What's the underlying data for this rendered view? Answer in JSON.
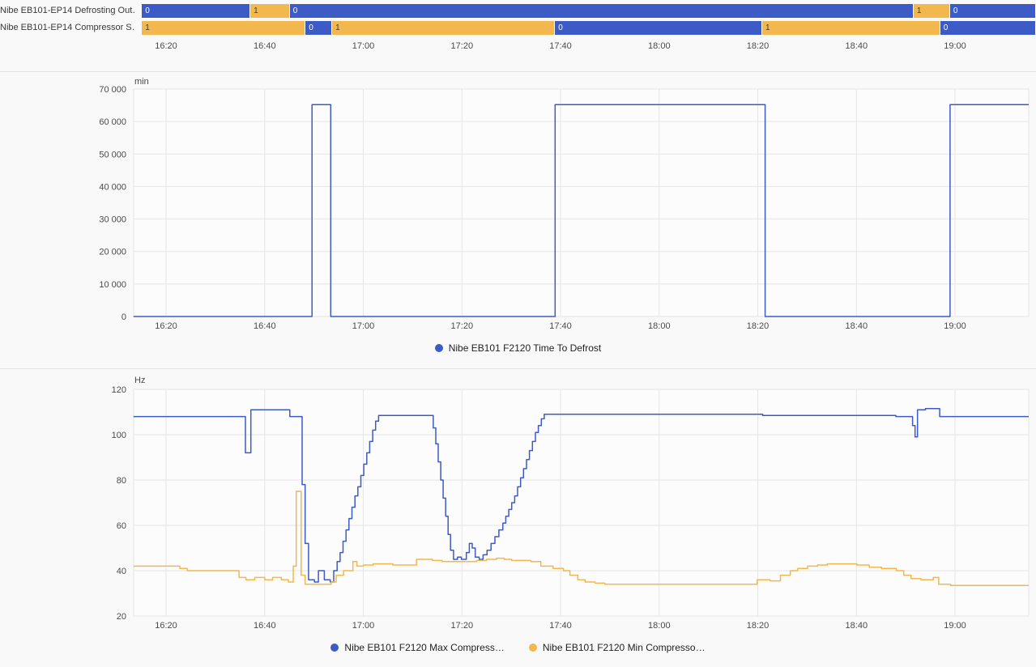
{
  "colors": {
    "blue": "#3D5BC6",
    "amber": "#F2B74D",
    "grid": "#e5e5e5",
    "plot_bg": "#fcfcfd",
    "seg_label_on_blue": "#ffffff",
    "seg_label_on_amber": "#3d3d3d"
  },
  "time_axis": {
    "ticks": [
      {
        "t": 20,
        "label": "16:20"
      },
      {
        "t": 40,
        "label": "16:40"
      },
      {
        "t": 60,
        "label": "17:00"
      },
      {
        "t": 80,
        "label": "17:20"
      },
      {
        "t": 100,
        "label": "17:40"
      },
      {
        "t": 120,
        "label": "18:00"
      },
      {
        "t": 140,
        "label": "18:20"
      },
      {
        "t": 160,
        "label": "18:40"
      },
      {
        "t": 180,
        "label": "19:00"
      }
    ]
  },
  "timeline": {
    "rows": [
      {
        "label": "Nibe EB101-EP14 Defrosting Out…",
        "segments": [
          {
            "start": 15.1,
            "end": 37.1,
            "value": "0"
          },
          {
            "start": 37.1,
            "end": 45.1,
            "value": "1"
          },
          {
            "start": 45.1,
            "end": 171.6,
            "value": "0"
          },
          {
            "start": 171.6,
            "end": 179.0,
            "value": "1"
          },
          {
            "start": 179.0,
            "end": 196.4,
            "value": "0"
          }
        ]
      },
      {
        "label": "Nibe EB101-EP14 Compressor S…",
        "segments": [
          {
            "start": 15.1,
            "end": 48.3,
            "value": "1"
          },
          {
            "start": 48.3,
            "end": 53.7,
            "value": "0"
          },
          {
            "start": 53.7,
            "end": 98.9,
            "value": "1"
          },
          {
            "start": 98.9,
            "end": 140.9,
            "value": "0"
          },
          {
            "start": 140.9,
            "end": 177.0,
            "value": "1"
          },
          {
            "start": 177.0,
            "end": 196.4,
            "value": "0"
          }
        ]
      }
    ]
  },
  "chart_data": [
    {
      "type": "line",
      "title": "",
      "xlabel": "",
      "ylabel": "min",
      "xlim": [
        13.4,
        195.0
      ],
      "ylim": [
        0,
        70000
      ],
      "yticks": [
        0,
        10000,
        20000,
        30000,
        40000,
        50000,
        60000,
        70000
      ],
      "ytick_labels": [
        "0",
        "10 000",
        "20 000",
        "30 000",
        "40 000",
        "50 000",
        "60 000",
        "70 000"
      ],
      "x_tick_labels": [
        "16:20",
        "16:40",
        "17:00",
        "17:20",
        "17:40",
        "18:00",
        "18:20",
        "18:40",
        "19:00"
      ],
      "grid": true,
      "legend_position": "bottom-center",
      "legend": [
        {
          "name": "Nibe EB101 F2120 Time To Defrost",
          "color": "blue"
        }
      ],
      "series": [
        {
          "name": "Nibe EB101 F2120 Time To Defrost",
          "color": "blue",
          "interpolation": "step-after",
          "points": [
            [
              13.4,
              0
            ],
            [
              49.6,
              65200
            ],
            [
              53.4,
              0
            ],
            [
              98.9,
              65200
            ],
            [
              141.5,
              0
            ],
            [
              179.0,
              65200
            ]
          ]
        }
      ]
    },
    {
      "type": "line",
      "title": "",
      "xlabel": "",
      "ylabel": "Hz",
      "xlim": [
        13.4,
        195.0
      ],
      "ylim": [
        20,
        120
      ],
      "yticks": [
        20,
        40,
        60,
        80,
        100,
        120
      ],
      "ytick_labels": [
        "20",
        "40",
        "60",
        "80",
        "100",
        "120"
      ],
      "x_tick_labels": [
        "16:20",
        "16:40",
        "17:00",
        "17:20",
        "17:40",
        "18:00",
        "18:20",
        "18:40",
        "19:00"
      ],
      "grid": true,
      "legend_position": "bottom-center",
      "legend": [
        {
          "name": "Nibe EB101 F2120 Max Compress…",
          "color": "blue"
        },
        {
          "name": "Nibe EB101 F2120 Min Compresso…",
          "color": "amber"
        }
      ],
      "series": [
        {
          "name": "Nibe EB101 F2120 Max Compress…",
          "color": "blue",
          "interpolation": "step-after",
          "points": [
            [
              13.4,
              108
            ],
            [
              36.1,
              92
            ],
            [
              37.2,
              111
            ],
            [
              45.1,
              108
            ],
            [
              47.6,
              78
            ],
            [
              48.2,
              52
            ],
            [
              48.9,
              36
            ],
            [
              50.1,
              35
            ],
            [
              50.9,
              40
            ],
            [
              52.1,
              36
            ],
            [
              53.3,
              35
            ],
            [
              54.0,
              40
            ],
            [
              54.7,
              44
            ],
            [
              55.3,
              48
            ],
            [
              55.9,
              53
            ],
            [
              56.5,
              58
            ],
            [
              57.1,
              63
            ],
            [
              57.7,
              68
            ],
            [
              58.3,
              73
            ],
            [
              58.9,
              77
            ],
            [
              59.5,
              82
            ],
            [
              60.1,
              87
            ],
            [
              60.7,
              92
            ],
            [
              61.3,
              97
            ],
            [
              61.9,
              102
            ],
            [
              62.5,
              106
            ],
            [
              63.1,
              108.5
            ],
            [
              74.2,
              103
            ],
            [
              74.7,
              96
            ],
            [
              75.2,
              88
            ],
            [
              75.7,
              80
            ],
            [
              76.2,
              72
            ],
            [
              76.7,
              64
            ],
            [
              77.2,
              56
            ],
            [
              77.7,
              49
            ],
            [
              78.3,
              45
            ],
            [
              79.1,
              46
            ],
            [
              79.9,
              45
            ],
            [
              80.9,
              48
            ],
            [
              81.5,
              52
            ],
            [
              82.1,
              50
            ],
            [
              82.7,
              46
            ],
            [
              83.5,
              45
            ],
            [
              84.3,
              47
            ],
            [
              85.1,
              49
            ],
            [
              85.9,
              52
            ],
            [
              86.7,
              55
            ],
            [
              87.5,
              58
            ],
            [
              88.3,
              61
            ],
            [
              88.9,
              64
            ],
            [
              89.5,
              67
            ],
            [
              90.1,
              70
            ],
            [
              90.7,
              73
            ],
            [
              91.3,
              77
            ],
            [
              91.9,
              81
            ],
            [
              92.5,
              85
            ],
            [
              93.1,
              89
            ],
            [
              93.7,
              93
            ],
            [
              94.3,
              97
            ],
            [
              94.9,
              101
            ],
            [
              95.5,
              104
            ],
            [
              96.1,
              107
            ],
            [
              96.7,
              109
            ],
            [
              141.0,
              108.5
            ],
            [
              168.0,
              108
            ],
            [
              171.4,
              104
            ],
            [
              171.9,
              99
            ],
            [
              172.4,
              111
            ],
            [
              174.0,
              111.5
            ],
            [
              176.9,
              108
            ]
          ]
        },
        {
          "name": "Nibe EB101 F2120 Min Compresso…",
          "color": "amber",
          "interpolation": "step-after",
          "points": [
            [
              13.4,
              42
            ],
            [
              22.8,
              41
            ],
            [
              24.3,
              40
            ],
            [
              34.8,
              37
            ],
            [
              36.2,
              36
            ],
            [
              38.0,
              37
            ],
            [
              40.0,
              36
            ],
            [
              41.6,
              37
            ],
            [
              43.4,
              36
            ],
            [
              44.8,
              35
            ],
            [
              45.8,
              42
            ],
            [
              46.4,
              75
            ],
            [
              47.4,
              38
            ],
            [
              48.2,
              34
            ],
            [
              53.5,
              35
            ],
            [
              54.5,
              38
            ],
            [
              56.0,
              40
            ],
            [
              57.9,
              44
            ],
            [
              58.7,
              42
            ],
            [
              60.0,
              42.5
            ],
            [
              62.0,
              43
            ],
            [
              66.0,
              42.5
            ],
            [
              70.8,
              45
            ],
            [
              74.0,
              44.5
            ],
            [
              76.0,
              44
            ],
            [
              83.0,
              44.5
            ],
            [
              85.0,
              45
            ],
            [
              87.0,
              45.5
            ],
            [
              88.6,
              45
            ],
            [
              90.1,
              44.5
            ],
            [
              94.0,
              44
            ],
            [
              96.0,
              42
            ],
            [
              98.5,
              41
            ],
            [
              100.6,
              40
            ],
            [
              101.9,
              38
            ],
            [
              103.5,
              36
            ],
            [
              105.0,
              35
            ],
            [
              107.0,
              34.5
            ],
            [
              109.0,
              34
            ],
            [
              139.9,
              36
            ],
            [
              142.5,
              35.5
            ],
            [
              144.6,
              38
            ],
            [
              146.6,
              40
            ],
            [
              148.1,
              41
            ],
            [
              150.1,
              42
            ],
            [
              152.1,
              42.5
            ],
            [
              154.1,
              43
            ],
            [
              160.1,
              42.5
            ],
            [
              162.6,
              41.5
            ],
            [
              165.1,
              41
            ],
            [
              168.1,
              40
            ],
            [
              169.6,
              38
            ],
            [
              171.1,
              36.5
            ],
            [
              173.1,
              36
            ],
            [
              175.6,
              37
            ],
            [
              176.7,
              34
            ],
            [
              179.1,
              33.5
            ]
          ]
        }
      ]
    }
  ]
}
